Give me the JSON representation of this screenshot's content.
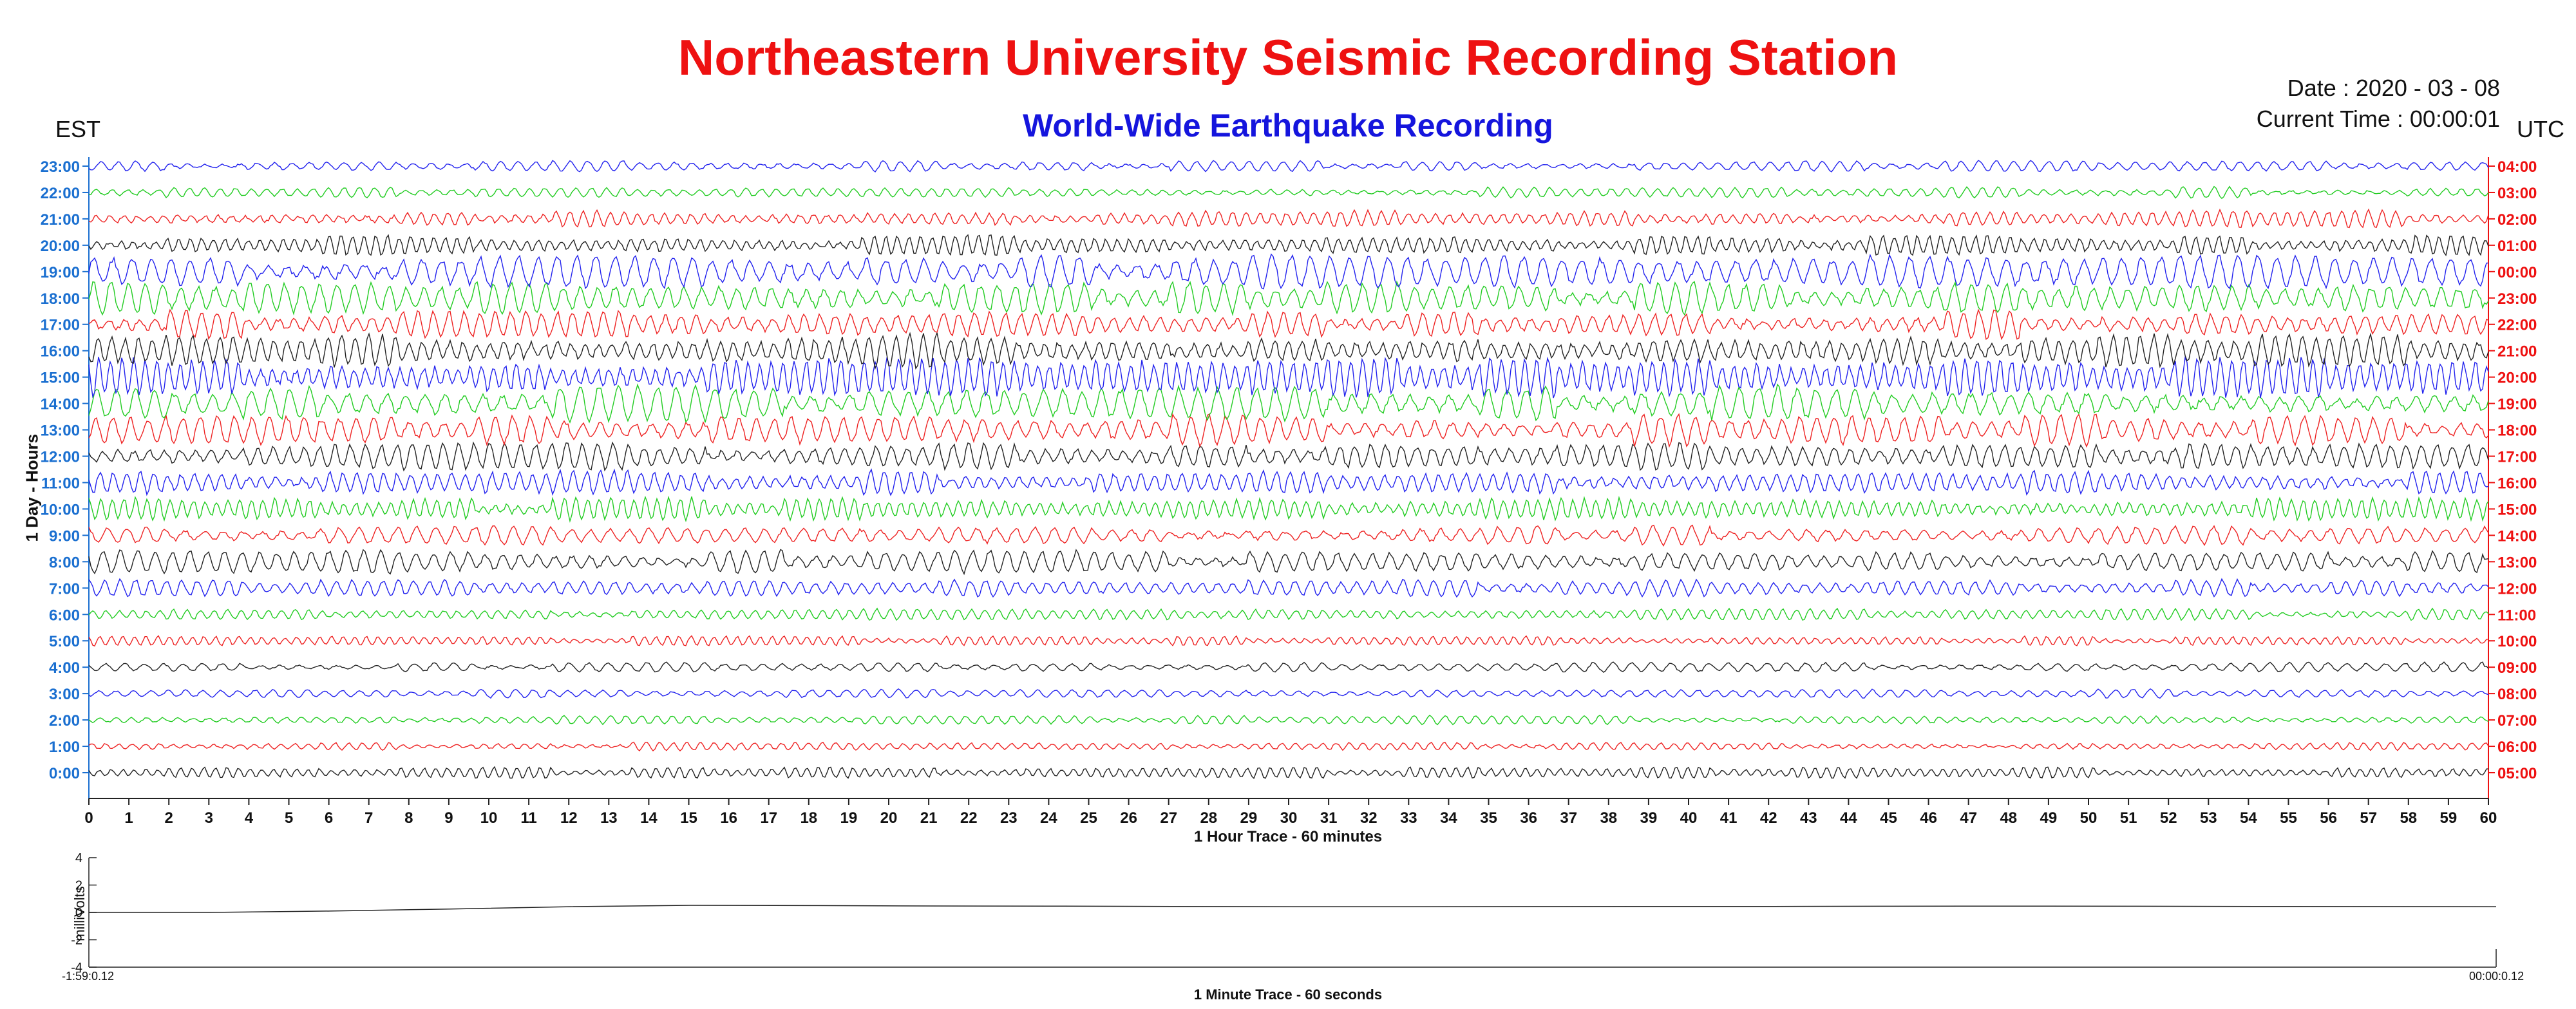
{
  "header": {
    "title": "Northeastern University Seismic Recording Station",
    "subtitle": "World-Wide Earthquake Recording",
    "date_text": "Date : 2020 - 03 - 08",
    "time_text": "Current Time : 00:00:01",
    "left_zone": "EST",
    "right_zone": "UTC"
  },
  "colors": {
    "title": "#ee1111",
    "subtitle": "#1515dd",
    "left_axis": "#1a6fd0",
    "right_axis": "#ee1111",
    "trace_cycle": [
      "#222222",
      "#ee2222",
      "#22cc22",
      "#2222ee"
    ]
  },
  "chart_data": [
    {
      "type": "line",
      "xlabel": "1 Hour Trace - 60 minutes",
      "ylabel": "1 Day - Hours",
      "xlim": [
        0,
        60
      ],
      "x_ticks": [
        "0",
        "1",
        "2",
        "3",
        "4",
        "5",
        "6",
        "7",
        "8",
        "9",
        "10",
        "11",
        "12",
        "13",
        "14",
        "15",
        "16",
        "17",
        "18",
        "19",
        "20",
        "21",
        "22",
        "23",
        "24",
        "25",
        "26",
        "27",
        "28",
        "29",
        "30",
        "31",
        "32",
        "33",
        "34",
        "35",
        "36",
        "37",
        "38",
        "39",
        "40",
        "41",
        "42",
        "43",
        "44",
        "45",
        "46",
        "47",
        "48",
        "49",
        "50",
        "51",
        "52",
        "53",
        "54",
        "55",
        "56",
        "57",
        "58",
        "59",
        "60"
      ],
      "left_ticks": [
        "0:00",
        "1:00",
        "2:00",
        "3:00",
        "4:00",
        "5:00",
        "6:00",
        "7:00",
        "8:00",
        "9:00",
        "10:00",
        "11:00",
        "12:00",
        "13:00",
        "14:00",
        "15:00",
        "16:00",
        "17:00",
        "18:00",
        "19:00",
        "20:00",
        "21:00",
        "22:00",
        "23:00"
      ],
      "right_ticks": [
        "05:00",
        "06:00",
        "07:00",
        "08:00",
        "09:00",
        "10:00",
        "11:00",
        "12:00",
        "13:00",
        "14:00",
        "15:00",
        "16:00",
        "17:00",
        "18:00",
        "19:00",
        "20:00",
        "21:00",
        "22:00",
        "23:00",
        "00:00",
        "01:00",
        "02:00",
        "03:00",
        "04:00"
      ],
      "trace_activity": [
        0.22,
        0.1,
        0.1,
        0.1,
        0.14,
        0.16,
        0.2,
        0.42,
        0.62,
        0.5,
        0.66,
        0.72,
        0.78,
        0.9,
        1.05,
        1.25,
        1.0,
        0.8,
        0.95,
        1.0,
        0.55,
        0.42,
        0.18,
        0.18
      ],
      "grid": false,
      "legend": "none"
    },
    {
      "type": "line",
      "xlabel": "1 Minute Trace  - 60 seconds",
      "ylabel": "milliVolts",
      "ylim": [
        -4,
        4
      ],
      "y_ticks": [
        "4",
        "2",
        "0",
        "-2",
        "-4"
      ],
      "start_label": "-1:59:0.12",
      "end_label": "00:00:0.12",
      "values": [
        0,
        0,
        0.1,
        0.25,
        0.42,
        0.52,
        0.5,
        0.47,
        0.46,
        0.44,
        0.42,
        0.42,
        0.43,
        0.44,
        0.44,
        0.45,
        0.46,
        0.45,
        0.44,
        0.43,
        0.42
      ]
    }
  ]
}
